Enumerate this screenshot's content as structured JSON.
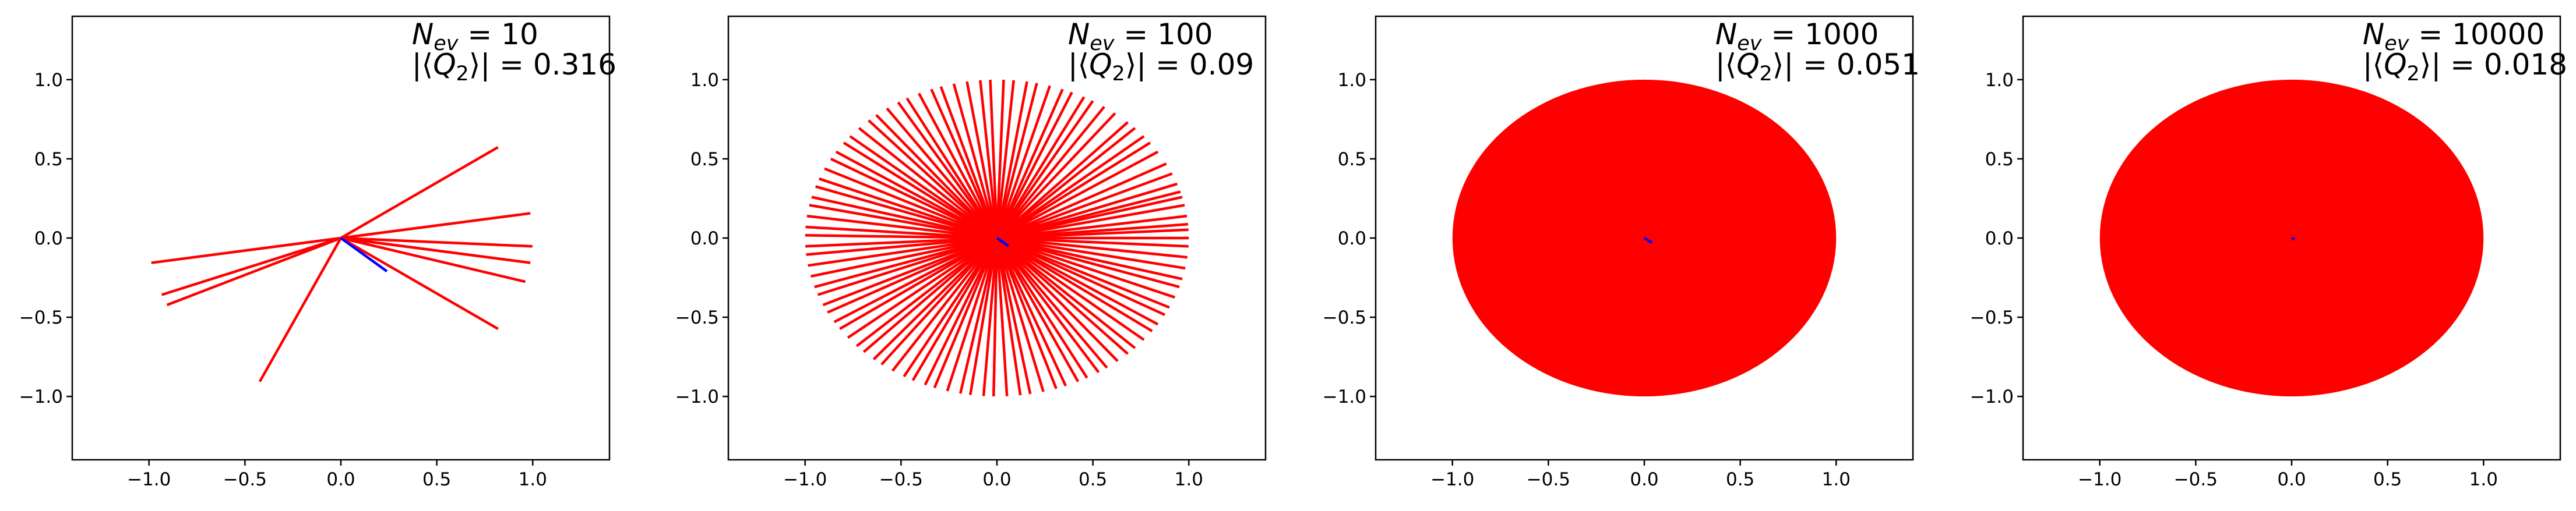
{
  "chart_data": [
    {
      "type": "vectors",
      "xlim": [
        -1.4,
        1.4
      ],
      "ylim": [
        -1.4,
        1.4
      ],
      "xticks": [
        {
          "value": -1,
          "label": "−1.0"
        },
        {
          "value": -0.5,
          "label": "−0.5"
        },
        {
          "value": 0,
          "label": "0.0"
        },
        {
          "value": 0.5,
          "label": "0.5"
        },
        {
          "value": 1,
          "label": "1.0"
        }
      ],
      "yticks": [
        {
          "value": -1,
          "label": "−1.0"
        },
        {
          "value": -0.5,
          "label": "−0.5"
        },
        {
          "value": 0,
          "label": "0.0"
        },
        {
          "value": 0.5,
          "label": "0.5"
        },
        {
          "value": 1,
          "label": "1.0"
        }
      ],
      "annotation": {
        "symbol": "N",
        "subscript": "ev",
        "text": " = 10",
        "q_open": "|⟨",
        "q_symbol": "Q",
        "q_subscript": "2",
        "q_text": "⟩| = 0.316"
      },
      "color": "#ff0000",
      "mean_color": "#0000ff",
      "angles": [
        35,
        9,
        -3,
        -9,
        -16,
        -35,
        -115,
        -155,
        -159,
        -171
      ],
      "mean": [
        0.24,
        -0.21
      ]
    },
    {
      "type": "vectors",
      "xlim": [
        -1.4,
        1.4
      ],
      "ylim": [
        -1.4,
        1.4
      ],
      "xticks": [
        {
          "value": -1,
          "label": "−1.0"
        },
        {
          "value": -0.5,
          "label": "−0.5"
        },
        {
          "value": 0,
          "label": "0.0"
        },
        {
          "value": 0.5,
          "label": "0.5"
        },
        {
          "value": 1,
          "label": "1.0"
        }
      ],
      "yticks": [
        {
          "value": -1,
          "label": "−1.0"
        },
        {
          "value": -0.5,
          "label": "−0.5"
        },
        {
          "value": 0,
          "label": "0.0"
        },
        {
          "value": 0.5,
          "label": "0.5"
        },
        {
          "value": 1,
          "label": "1.0"
        }
      ],
      "annotation": {
        "symbol": "N",
        "subscript": "ev",
        "text": " = 100",
        "q_open": "|⟨",
        "q_symbol": "Q",
        "q_subscript": "2",
        "q_text": "⟩| = 0.09"
      },
      "color": "#ff0000",
      "mean_color": "#0000ff",
      "angles": [
        0,
        3,
        5,
        8,
        12,
        15,
        17,
        20,
        24,
        28,
        33,
        37,
        40,
        44,
        47,
        52,
        56,
        60,
        63,
        67,
        70,
        74,
        78,
        81,
        85,
        88,
        92,
        95,
        99,
        103,
        107,
        110,
        114,
        118,
        121,
        125,
        129,
        132,
        136,
        140,
        143,
        147,
        150,
        154,
        158,
        161,
        165,
        168,
        172,
        176,
        179,
        183,
        186,
        190,
        194,
        198,
        201,
        205,
        208,
        212,
        215,
        219,
        223,
        226,
        230,
        233,
        237,
        241,
        244,
        248,
        251,
        255,
        259,
        262,
        266,
        269,
        273,
        277,
        280,
        284,
        288,
        291,
        295,
        298,
        302,
        305,
        309,
        313,
        316,
        320,
        324,
        327,
        331,
        334,
        338,
        342,
        345,
        349,
        353,
        357
      ],
      "mean": [
        0.06,
        -0.05
      ]
    },
    {
      "type": "disk",
      "xlim": [
        -1.4,
        1.4
      ],
      "ylim": [
        -1.4,
        1.4
      ],
      "xticks": [
        {
          "value": -1,
          "label": "−1.0"
        },
        {
          "value": -0.5,
          "label": "−0.5"
        },
        {
          "value": 0,
          "label": "0.0"
        },
        {
          "value": 0.5,
          "label": "0.5"
        },
        {
          "value": 1,
          "label": "1.0"
        }
      ],
      "yticks": [
        {
          "value": -1,
          "label": "−1.0"
        },
        {
          "value": -0.5,
          "label": "−0.5"
        },
        {
          "value": 0,
          "label": "0.0"
        },
        {
          "value": 0.5,
          "label": "0.5"
        },
        {
          "value": 1,
          "label": "1.0"
        }
      ],
      "annotation": {
        "symbol": "N",
        "subscript": "ev",
        "text": " = 1000",
        "q_open": "|⟨",
        "q_symbol": "Q",
        "q_subscript": "2",
        "q_text": "⟩| = 0.051"
      },
      "color": "#ff0000",
      "mean_color": "#0000ff",
      "radius": 1,
      "mean": [
        0.04,
        -0.03
      ]
    },
    {
      "type": "disk",
      "xlim": [
        -1.4,
        1.4
      ],
      "ylim": [
        -1.4,
        1.4
      ],
      "xticks": [
        {
          "value": -1,
          "label": "−1.0"
        },
        {
          "value": -0.5,
          "label": "−0.5"
        },
        {
          "value": 0,
          "label": "0.0"
        },
        {
          "value": 0.5,
          "label": "0.5"
        },
        {
          "value": 1,
          "label": "1.0"
        }
      ],
      "yticks": [
        {
          "value": -1,
          "label": "−1.0"
        },
        {
          "value": -0.5,
          "label": "−0.5"
        },
        {
          "value": 0,
          "label": "0.0"
        },
        {
          "value": 0.5,
          "label": "0.5"
        },
        {
          "value": 1,
          "label": "1.0"
        }
      ],
      "annotation": {
        "symbol": "N",
        "subscript": "ev",
        "text": " = 10000",
        "q_open": "|⟨",
        "q_symbol": "Q",
        "q_subscript": "2",
        "q_text": "⟩| = 0.018"
      },
      "color": "#ff0000",
      "mean_color": "#0000ff",
      "radius": 1,
      "mean": [
        0.015,
        -0.01
      ]
    }
  ]
}
